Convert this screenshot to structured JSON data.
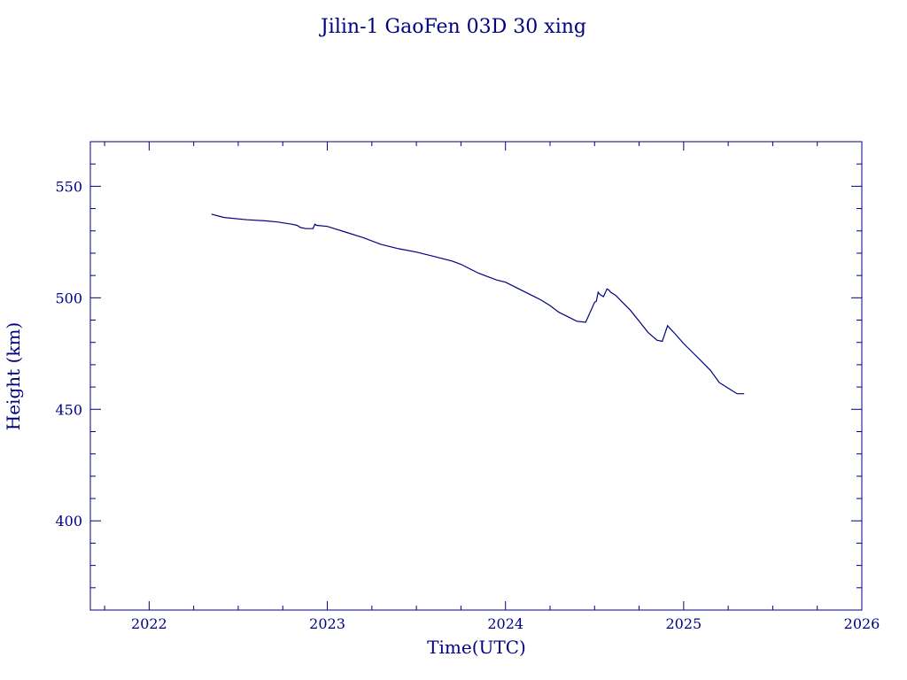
{
  "chart_data": {
    "type": "line",
    "title": "Jilin-1 GaoFen 03D 30 xing",
    "xlabel": "Time(UTC)",
    "ylabel": "Height (km)",
    "xlim": [
      2021.67,
      2026.0
    ],
    "ylim": [
      360,
      570
    ],
    "xticks": [
      "2022",
      "2023",
      "2024",
      "2025",
      "2026"
    ],
    "yticks": [
      "400",
      "450",
      "500",
      "550"
    ],
    "grid": false,
    "legend": "none",
    "color": "#000080",
    "series": [
      {
        "x": [
          2022.35,
          2022.42,
          2022.55,
          2022.65,
          2022.72,
          2022.8,
          2022.83,
          2022.85,
          2022.88,
          2022.92,
          2022.93,
          2022.94,
          2023.0,
          2023.1,
          2023.2,
          2023.3,
          2023.4,
          2023.5,
          2023.6,
          2023.7,
          2023.75,
          2023.8,
          2023.85,
          2023.9,
          2023.95,
          2024.0,
          2024.05,
          2024.1,
          2024.15,
          2024.2,
          2024.25,
          2024.3,
          2024.35,
          2024.4,
          2024.45,
          2024.5,
          2024.51,
          2024.52,
          2024.53,
          2024.54,
          2024.55,
          2024.57,
          2024.58,
          2024.59,
          2024.62,
          2024.65,
          2024.7,
          2024.75,
          2024.8,
          2024.85,
          2024.88,
          2024.91,
          2024.92,
          2024.95,
          2025.0,
          2025.05,
          2025.1,
          2025.15,
          2025.2,
          2025.25,
          2025.3,
          2025.34
        ],
        "y": [
          537.5,
          536,
          535,
          534.5,
          534,
          533,
          532.5,
          531.5,
          531,
          531,
          533,
          532.5,
          532,
          529.5,
          527,
          524,
          522,
          520.5,
          518.5,
          516.5,
          515,
          513,
          511,
          509.5,
          508,
          507,
          505,
          503,
          501,
          499,
          496.5,
          493.5,
          491.5,
          489.5,
          489,
          498,
          498.5,
          502.5,
          501.5,
          501,
          500.5,
          504,
          503.5,
          502.5,
          501,
          498.5,
          494.5,
          489.5,
          484.5,
          481,
          480.5,
          487.5,
          486.5,
          484,
          479.5,
          475.5,
          471.5,
          467.5,
          462,
          459.5,
          457,
          457
        ]
      }
    ]
  }
}
